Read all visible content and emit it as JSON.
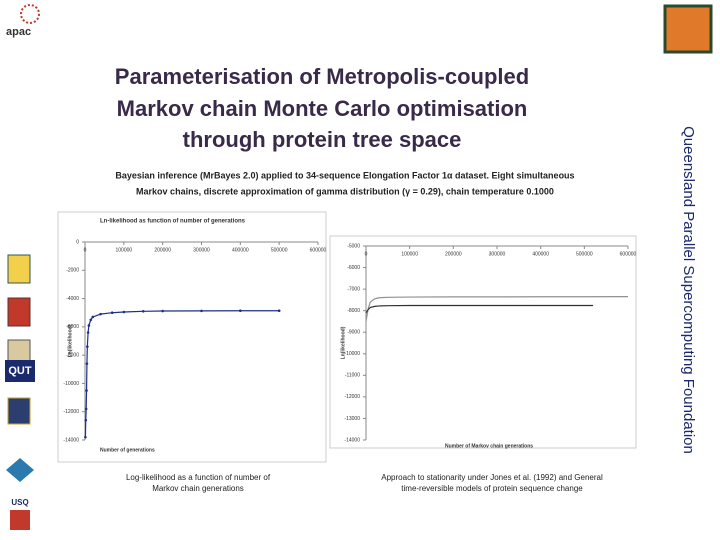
{
  "logo_text": "apac",
  "title": [
    "Parameterisation of Metropolis-coupled",
    "Markov chain Monte Carlo optimisation",
    "through protein tree space"
  ],
  "subtitle": [
    "Bayesian inference (MrBayes 2.0) applied to 34-sequence Elongation Factor 1α dataset. Eight simultaneous",
    "Markov chains, discrete approximation of gamma distribution (γ = 0.29), chain temperature 0.1000"
  ],
  "side_text": "Queensland Parallel Supercomputing Foundation",
  "logos": [
    "QUT",
    "USQ"
  ],
  "captions": [
    [
      "Log-likelihood as a function of number of",
      "Markov chain generations"
    ],
    [
      "Approach to stationarity under Jones et al. (1992) and General",
      "time-reversible models of protein sequence change"
    ]
  ],
  "chart_data": [
    {
      "type": "line",
      "title": "Ln-likelihood as function of number of generations",
      "x_label": "Number of generations",
      "y_label": "Ln(likelihood)",
      "xlim": [
        0,
        600000
      ],
      "xticks": [
        0,
        100000,
        200000,
        300000,
        400000,
        500000,
        600000
      ],
      "ylim": [
        -14000,
        0
      ],
      "yticks": [
        0,
        -2000,
        -4000,
        -6000,
        -8000,
        -10000,
        -12000,
        -14000
      ],
      "series": [
        {
          "color": "#1f2f8a",
          "x": [
            1000,
            2000,
            3000,
            4000,
            5000,
            6000,
            8000,
            10000,
            15000,
            20000,
            40000,
            70000,
            100000,
            150000,
            200000,
            300000,
            400000,
            500000
          ],
          "values": [
            -13800,
            -12600,
            -11800,
            -10500,
            -8600,
            -7400,
            -6400,
            -5900,
            -5500,
            -5300,
            -5100,
            -5000,
            -4950,
            -4900,
            -4880,
            -4870,
            -4860,
            -4860
          ]
        }
      ]
    },
    {
      "type": "line",
      "x_label": "Number of Markov chain generations",
      "y_label": "Ln(likelihood)",
      "xlim": [
        0,
        600000
      ],
      "xticks": [
        0,
        100000,
        200000,
        300000,
        400000,
        500000,
        600000
      ],
      "ylim": [
        -14000,
        -5000
      ],
      "yticks": [
        -5000,
        -6000,
        -7000,
        -8000,
        -9000,
        -10000,
        -11000,
        -12000,
        -13000,
        -14000
      ],
      "series": [
        {
          "color": "#909090",
          "x": [
            0,
            5000,
            10000,
            20000,
            30000,
            50000,
            100000,
            200000,
            300000,
            400000,
            500000,
            600000
          ],
          "values": [
            -8500,
            -7900,
            -7600,
            -7450,
            -7400,
            -7380,
            -7370,
            -7360,
            -7360,
            -7355,
            -7355,
            -7350
          ]
        },
        {
          "color": "#303030",
          "x": [
            0,
            5000,
            10000,
            20000,
            30000,
            50000,
            100000,
            200000,
            300000,
            400000,
            520000
          ],
          "values": [
            -8100,
            -7950,
            -7850,
            -7800,
            -7780,
            -7770,
            -7760,
            -7760,
            -7760,
            -7760,
            -7760
          ]
        }
      ]
    }
  ]
}
